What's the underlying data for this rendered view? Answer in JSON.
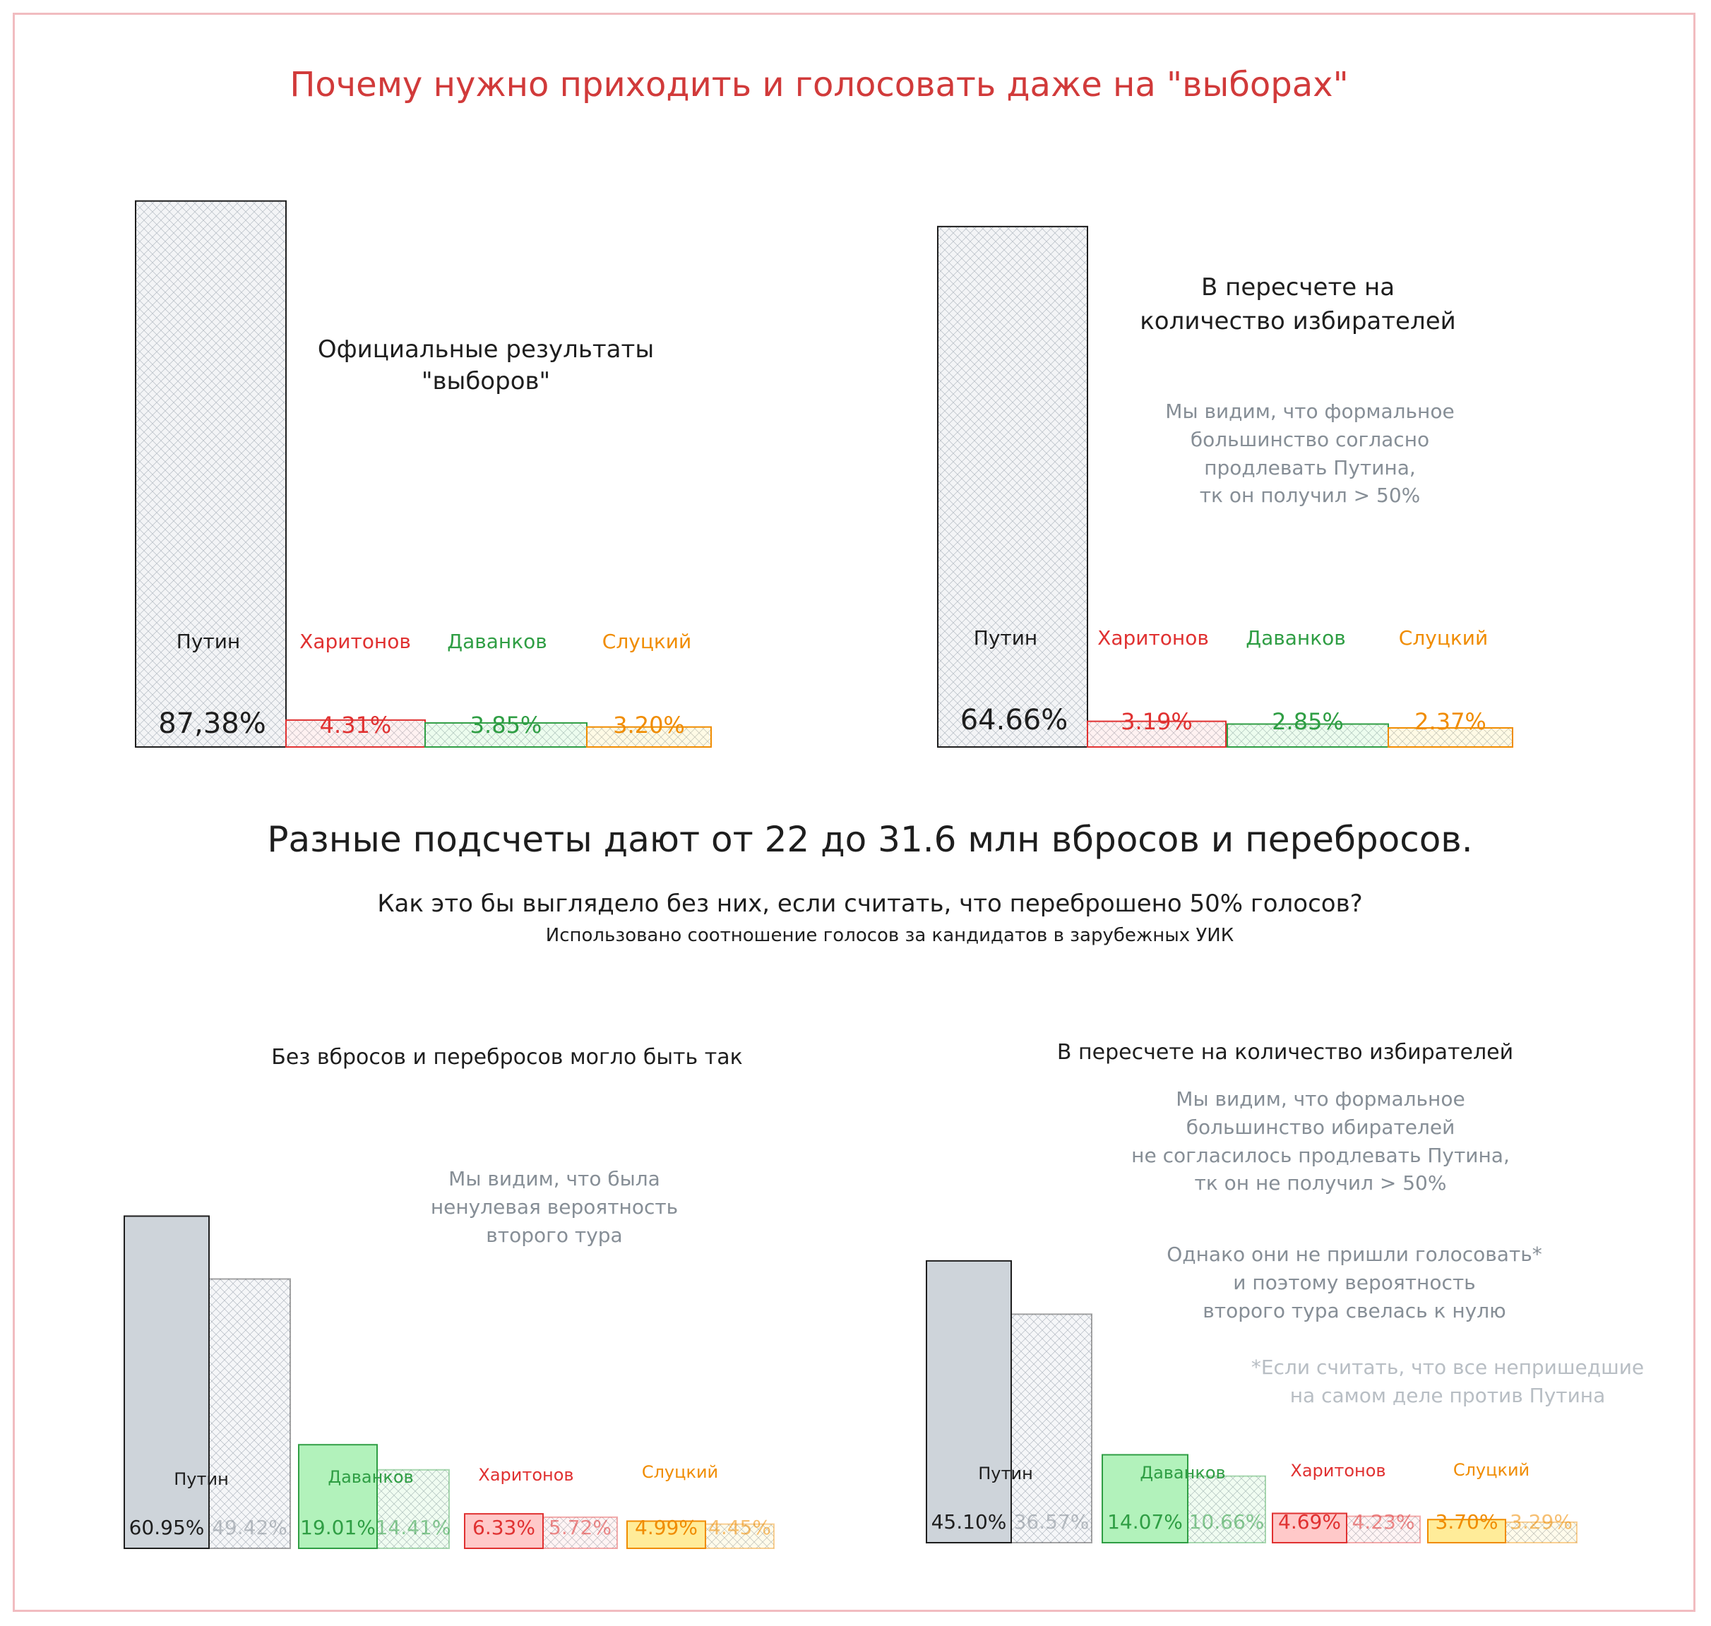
{
  "title": "Почему нужно приходить и голосовать даже на \"выборах\"",
  "middle": {
    "headline": "Разные подсчеты дают от 22 до 31.6 млн вбросов и перебросов.",
    "question": "Как это бы выглядело без них, если считать, что переброшено 50% голосов?",
    "source": "Использовано соотношение голосов за кандидатов в зарубежных УИК"
  },
  "panels": {
    "official": {
      "title_line1": "Официальные результаты",
      "title_line2": "\"выборов\""
    },
    "official_voters": {
      "title_line1": "В пересчете на",
      "title_line2": "количество избирателей",
      "note": [
        "Мы видим, что формальное",
        "большинство согласно",
        "продлевать Путина,",
        "тк он получил > 50%"
      ]
    },
    "no_fraud": {
      "title": "Без вбросов и перебросов могло быть так",
      "note": [
        "Мы видим, что была",
        "ненулевая вероятность",
        "второго тура"
      ]
    },
    "no_fraud_voters": {
      "title": "В пересчете на количество избирателей",
      "note1": [
        "Мы видим, что формальное",
        "большинство ибирателей",
        "не согласилось продлевать Путина,",
        "тк он не получил > 50%"
      ],
      "note2": [
        "Однако они не пришли голосовать*",
        "и поэтому вероятность",
        "второго тура свелась к нулю"
      ],
      "footnote": [
        "*Если считать, что все непришедшие",
        "на самом деле против Путина"
      ]
    }
  },
  "colors": {
    "putin": "#1e1e1e",
    "kharitonov": "#e03131",
    "davankov": "#2f9e44",
    "slutsky": "#f08c00",
    "putin_fill": "#ced4da",
    "kharitonov_fill": "#ffc9c9",
    "davankov_fill": "#b2f2bb",
    "slutsky_fill": "#ffec99"
  },
  "chart_data": [
    {
      "type": "bar",
      "title": "Официальные результаты \"выборов\"",
      "categories": [
        "Путин",
        "Харитонов",
        "Даванков",
        "Слуцкий"
      ],
      "values": [
        87.38,
        4.31,
        3.85,
        3.2
      ],
      "labels": [
        "87,38%",
        "4.31%",
        "3.85%",
        "3.20%"
      ]
    },
    {
      "type": "bar",
      "title": "В пересчете на количество избирателей",
      "categories": [
        "Путин",
        "Харитонов",
        "Даванков",
        "Слуцкий"
      ],
      "values": [
        64.66,
        3.19,
        2.85,
        2.37
      ],
      "labels": [
        "64.66%",
        "3.19%",
        "2.85%",
        "2.37%"
      ]
    },
    {
      "type": "bar",
      "title": "Без вбросов и перебросов могло быть так",
      "categories": [
        "Путин",
        "Даванков",
        "Харитонов",
        "Слуцкий"
      ],
      "series": [
        {
          "values": [
            60.95,
            19.01,
            6.33,
            4.99
          ],
          "labels": [
            "60.95%",
            "19.01%",
            "6.33%",
            "4.99%"
          ]
        },
        {
          "values": [
            49.42,
            14.41,
            5.72,
            4.45
          ],
          "labels": [
            "49.42%",
            "14.41%",
            "5.72%",
            "4.45%"
          ]
        }
      ]
    },
    {
      "type": "bar",
      "title": "В пересчете на количество избирателей",
      "categories": [
        "Путин",
        "Даванков",
        "Харитонов",
        "Слуцкий"
      ],
      "series": [
        {
          "values": [
            45.1,
            14.07,
            4.69,
            3.7
          ],
          "labels": [
            "45.10%",
            "14.07%",
            "4.69%",
            "3.70%"
          ]
        },
        {
          "values": [
            36.57,
            10.66,
            4.23,
            3.29
          ],
          "labels": [
            "36.57%",
            "10.66%",
            "4.23%",
            "3.29%"
          ]
        }
      ]
    }
  ]
}
